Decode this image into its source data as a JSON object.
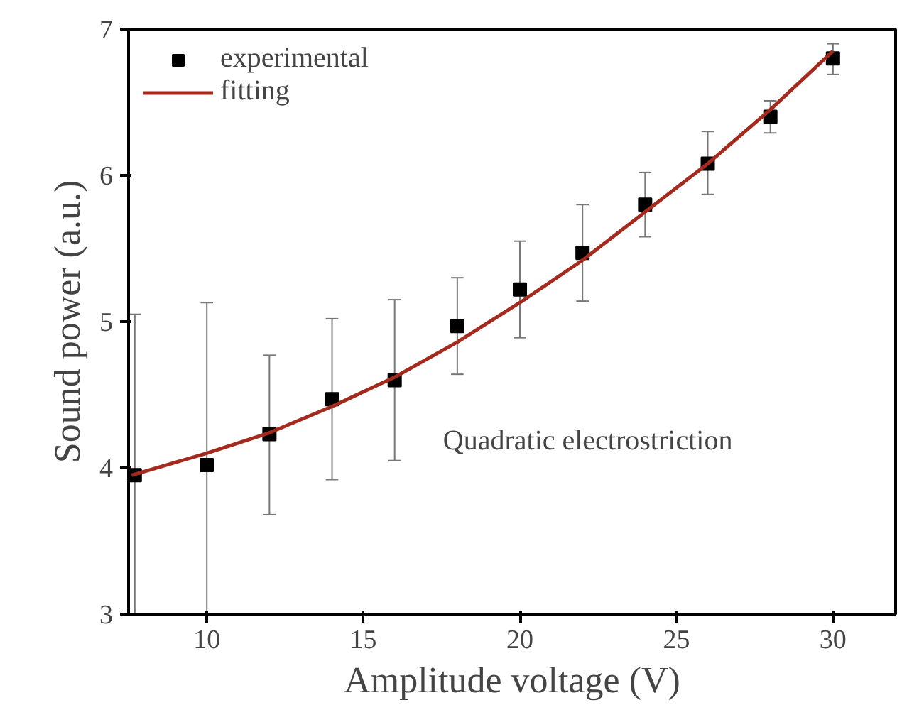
{
  "chart_data": {
    "type": "scatter",
    "xlabel": "Amplitude voltage (V)",
    "ylabel": "Sound power (a.u.)",
    "xlim": [
      7.5,
      32
    ],
    "ylim": [
      3,
      7
    ],
    "xticks": [
      10,
      15,
      20,
      25,
      30
    ],
    "yticks": [
      3,
      4,
      5,
      6,
      7
    ],
    "grid": false,
    "legend": "top left",
    "annotations": [
      "Quadratic electrostriction"
    ],
    "series": [
      {
        "name": "experimental",
        "marker": "square",
        "color": "#000000",
        "x": [
          7.7,
          10,
          12,
          14,
          16,
          18,
          20,
          22,
          24,
          26,
          28,
          30
        ],
        "values": [
          3.95,
          4.02,
          4.23,
          4.47,
          4.6,
          4.97,
          5.22,
          5.47,
          5.8,
          6.08,
          6.4,
          6.8
        ],
        "errors": [
          [
            3.0,
            5.05
          ],
          [
            3.0,
            5.13
          ],
          [
            3.68,
            4.77
          ],
          [
            3.92,
            5.02
          ],
          [
            4.05,
            5.15
          ],
          [
            4.64,
            5.3
          ],
          [
            4.89,
            5.55
          ],
          [
            5.14,
            5.8
          ],
          [
            5.58,
            6.02
          ],
          [
            5.87,
            6.3
          ],
          [
            6.29,
            6.51
          ],
          [
            6.69,
            6.9
          ]
        ]
      },
      {
        "name": "fitting",
        "type": "line",
        "color": "#a52a1e",
        "line_style": "solid",
        "x": [
          7.6,
          10,
          12,
          14,
          16,
          18,
          20,
          22,
          24,
          26,
          28,
          30
        ],
        "values": [
          3.95,
          4.1,
          4.24,
          4.42,
          4.62,
          4.86,
          5.13,
          5.42,
          5.75,
          6.08,
          6.45,
          6.85
        ]
      }
    ]
  }
}
